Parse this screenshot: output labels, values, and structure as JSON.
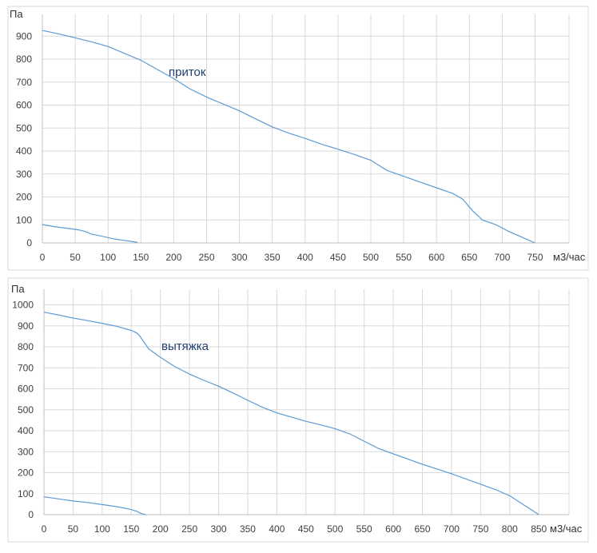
{
  "chart_data": [
    {
      "type": "line",
      "ylabel": "Па",
      "xunit": "м3/час",
      "annotation": "приток",
      "x_ticks": [
        0,
        50,
        100,
        150,
        200,
        250,
        300,
        350,
        400,
        450,
        500,
        550,
        600,
        650,
        700,
        750
      ],
      "y_ticks": [
        0,
        100,
        200,
        300,
        400,
        500,
        600,
        700,
        800,
        900
      ],
      "xlim": [
        0,
        800
      ],
      "ylim": [
        0,
        950
      ],
      "grid": true,
      "line_color": "#5b9bd5",
      "series": [
        {
          "x": [
            0,
            25,
            50,
            75,
            100,
            125,
            150,
            175,
            200,
            225,
            250,
            275,
            300,
            325,
            350,
            375,
            400,
            425,
            450,
            475,
            500,
            525,
            550,
            575,
            600,
            625,
            640,
            655,
            670,
            690,
            710,
            730,
            750
          ],
          "y": [
            925,
            910,
            893,
            875,
            855,
            825,
            795,
            755,
            715,
            670,
            635,
            605,
            575,
            540,
            505,
            478,
            455,
            430,
            408,
            385,
            360,
            315,
            290,
            265,
            240,
            215,
            190,
            140,
            100,
            80,
            50,
            25,
            0
          ]
        },
        {
          "x": [
            0,
            20,
            40,
            55,
            65,
            75,
            90,
            105,
            120,
            135,
            145
          ],
          "y": [
            80,
            70,
            63,
            57,
            50,
            38,
            30,
            20,
            13,
            7,
            2
          ]
        }
      ]
    },
    {
      "type": "line",
      "ylabel": "Па",
      "xunit": "м3/час",
      "annotation": "вытяжка",
      "x_ticks": [
        0,
        50,
        100,
        150,
        200,
        250,
        300,
        350,
        400,
        450,
        500,
        550,
        600,
        650,
        700,
        750,
        800,
        850
      ],
      "y_ticks": [
        0,
        100,
        200,
        300,
        400,
        500,
        600,
        700,
        800,
        900,
        1000
      ],
      "xlim": [
        0,
        900
      ],
      "ylim": [
        0,
        1050
      ],
      "grid": true,
      "line_color": "#5b9bd5",
      "series": [
        {
          "x": [
            0,
            25,
            50,
            75,
            100,
            125,
            150,
            160,
            165,
            170,
            180,
            200,
            225,
            250,
            275,
            300,
            325,
            350,
            375,
            400,
            425,
            450,
            475,
            500,
            525,
            550,
            575,
            600,
            625,
            650,
            675,
            700,
            725,
            750,
            775,
            800,
            825,
            850
          ],
          "y": [
            965,
            952,
            937,
            925,
            912,
            898,
            878,
            865,
            850,
            830,
            790,
            750,
            705,
            670,
            640,
            612,
            580,
            545,
            512,
            485,
            465,
            445,
            428,
            410,
            385,
            350,
            315,
            290,
            265,
            240,
            218,
            195,
            170,
            145,
            120,
            90,
            45,
            0
          ]
        },
        {
          "x": [
            0,
            25,
            50,
            75,
            100,
            125,
            140,
            150,
            160,
            165,
            170,
            175
          ],
          "y": [
            85,
            75,
            65,
            58,
            48,
            38,
            30,
            24,
            15,
            8,
            3,
            0
          ]
        }
      ]
    }
  ]
}
